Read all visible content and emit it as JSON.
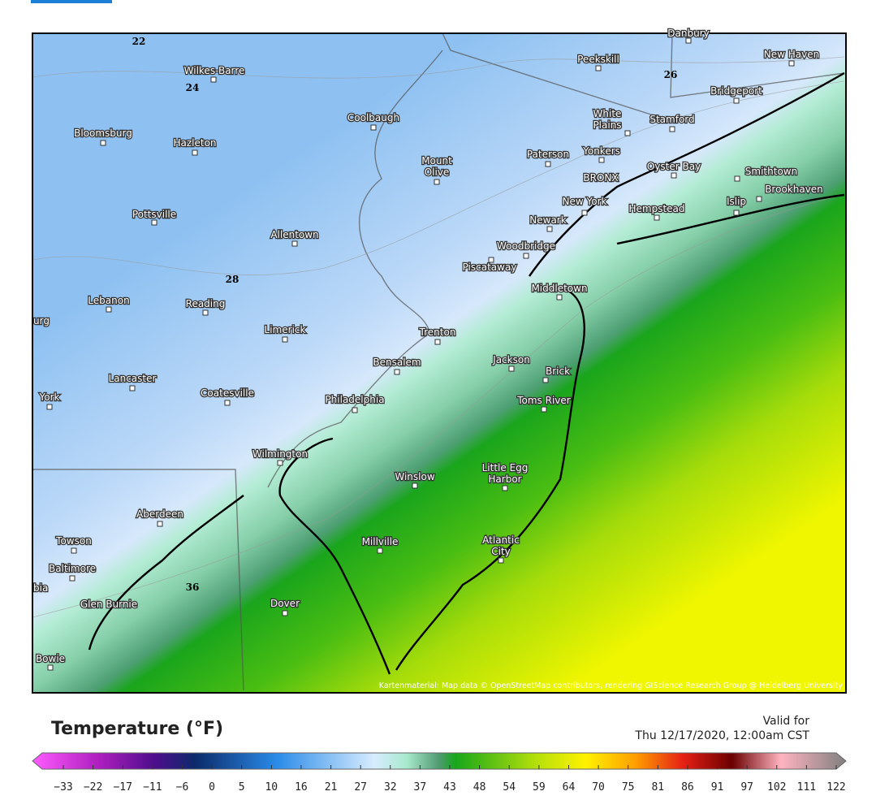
{
  "map": {
    "contour_labels": [
      "22",
      "24",
      "26",
      "28",
      "36"
    ],
    "cities": [
      "Wilkes-Barre",
      "Bloomsburg",
      "Hazleton",
      "Coolbaugh",
      "Peekskill",
      "Danbury",
      "New Haven",
      "Bridgeport",
      "White Plains",
      "Stamford",
      "Mount Olive",
      "Paterson",
      "Yonkers",
      "Oyster Bay",
      "Smithtown",
      "Brookhaven",
      "BRONX",
      "New York",
      "Hempstead",
      "Islip",
      "Newark",
      "Pottsville",
      "Allentown",
      "Woodbridge",
      "Piscataway",
      "Middletown",
      "Lebanon",
      "Reading",
      "Limerick",
      "Trenton",
      "Jackson",
      "Bensalem",
      "Brick",
      "Lancaster",
      "Coatesville",
      "York",
      "Philadelphia",
      "Toms River",
      "Wilmington",
      "Winslow",
      "Little Egg Harbor",
      "Aberdeen",
      "Towson",
      "Millville",
      "Atlantic City",
      "Baltimore",
      "Glen Burnie",
      "Dover",
      "Bowie"
    ],
    "partial_labels": [
      "urg",
      "bia"
    ],
    "attribution": "Kartenmaterial: Map data © OpenStreetMap contributors, rendering GIScience Research Group @ Heidelberg University"
  },
  "legend": {
    "title": "Temperature (°F)",
    "valid_label": "Valid for",
    "valid_time": "Thu 12/17/2020, 12:00am CST",
    "ticks": [
      "−33",
      "−22",
      "−17",
      "−11",
      "−6",
      "0",
      "5",
      "10",
      "16",
      "21",
      "27",
      "32",
      "37",
      "43",
      "48",
      "54",
      "59",
      "64",
      "70",
      "75",
      "81",
      "86",
      "91",
      "97",
      "102",
      "111",
      "122"
    ]
  }
}
